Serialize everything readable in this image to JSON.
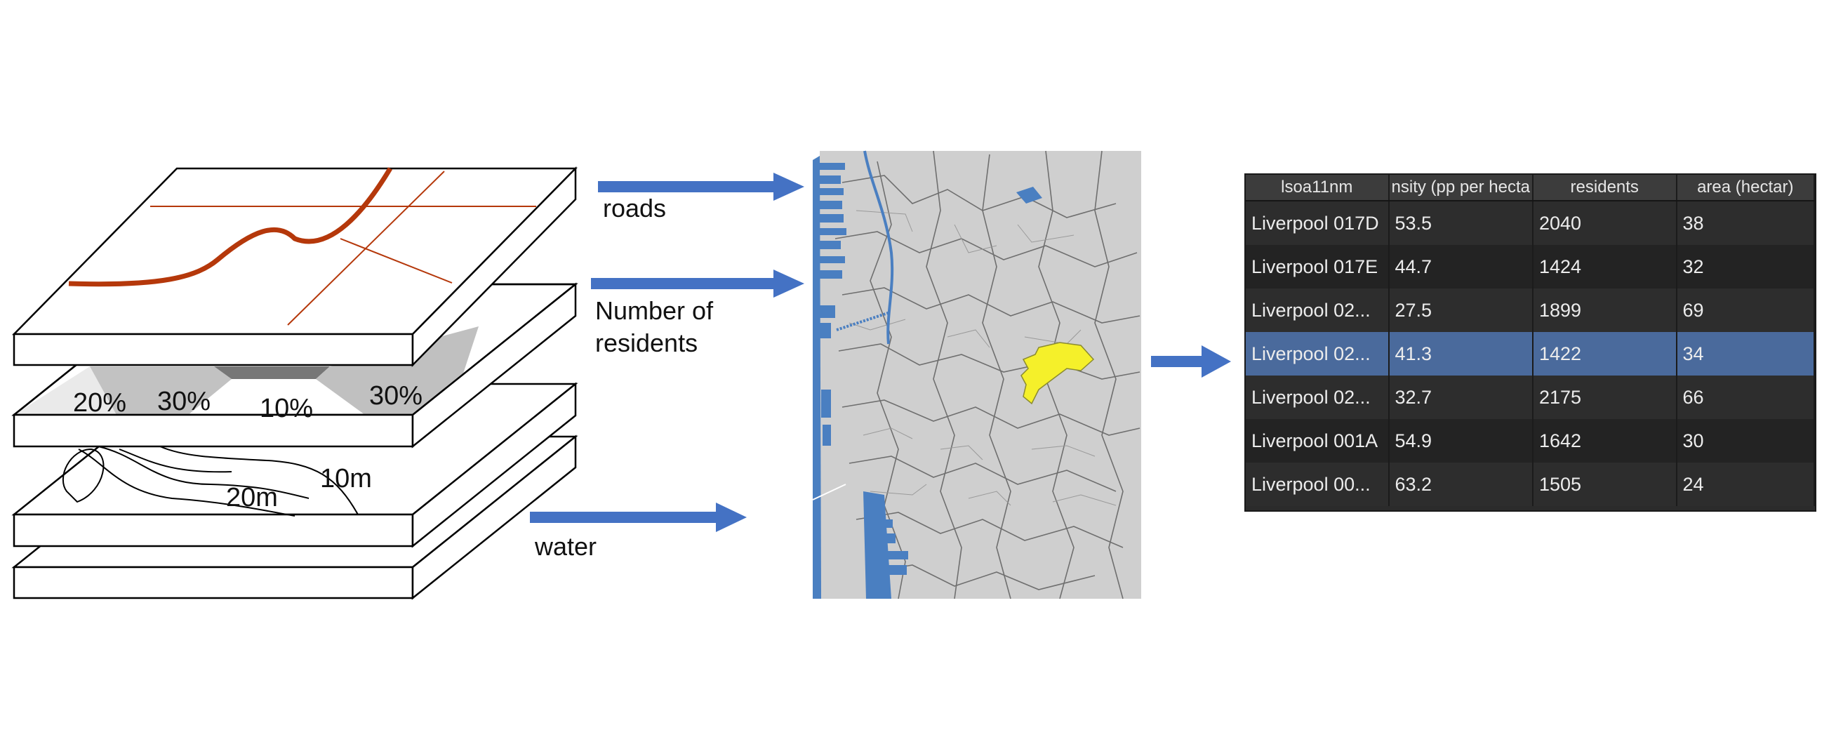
{
  "layers": {
    "zone_labels": [
      "20%",
      "30%",
      "10%",
      "30%"
    ],
    "contour_labels": [
      "20m",
      "10m"
    ]
  },
  "arrows": {
    "roads_label": "roads",
    "residents_label_line1": "Number of",
    "residents_label_line2": "residents",
    "water_label": "water"
  },
  "colors": {
    "arrow": "#4472c4",
    "road": "#b5380b",
    "map_bg": "#cfcfcf",
    "water": "#4a7fc1",
    "highlight": "#f5f02a",
    "table_selected": "#4a6a9c"
  },
  "table": {
    "headers": [
      "lsoa11nm",
      "nsity (pp per hecta",
      "residents",
      "area (hectar)"
    ],
    "rows": [
      [
        "Liverpool 017D",
        "53.5",
        "2040",
        "38"
      ],
      [
        "Liverpool 017E",
        "44.7",
        "1424",
        "32"
      ],
      [
        "Liverpool 02...",
        "27.5",
        "1899",
        "69"
      ],
      [
        "Liverpool 02...",
        "41.3",
        "1422",
        "34"
      ],
      [
        "Liverpool 02...",
        "32.7",
        "2175",
        "66"
      ],
      [
        "Liverpool 001A",
        "54.9",
        "1642",
        "30"
      ],
      [
        "Liverpool 00...",
        "63.2",
        "1505",
        "24"
      ]
    ],
    "selected_row": 3
  }
}
